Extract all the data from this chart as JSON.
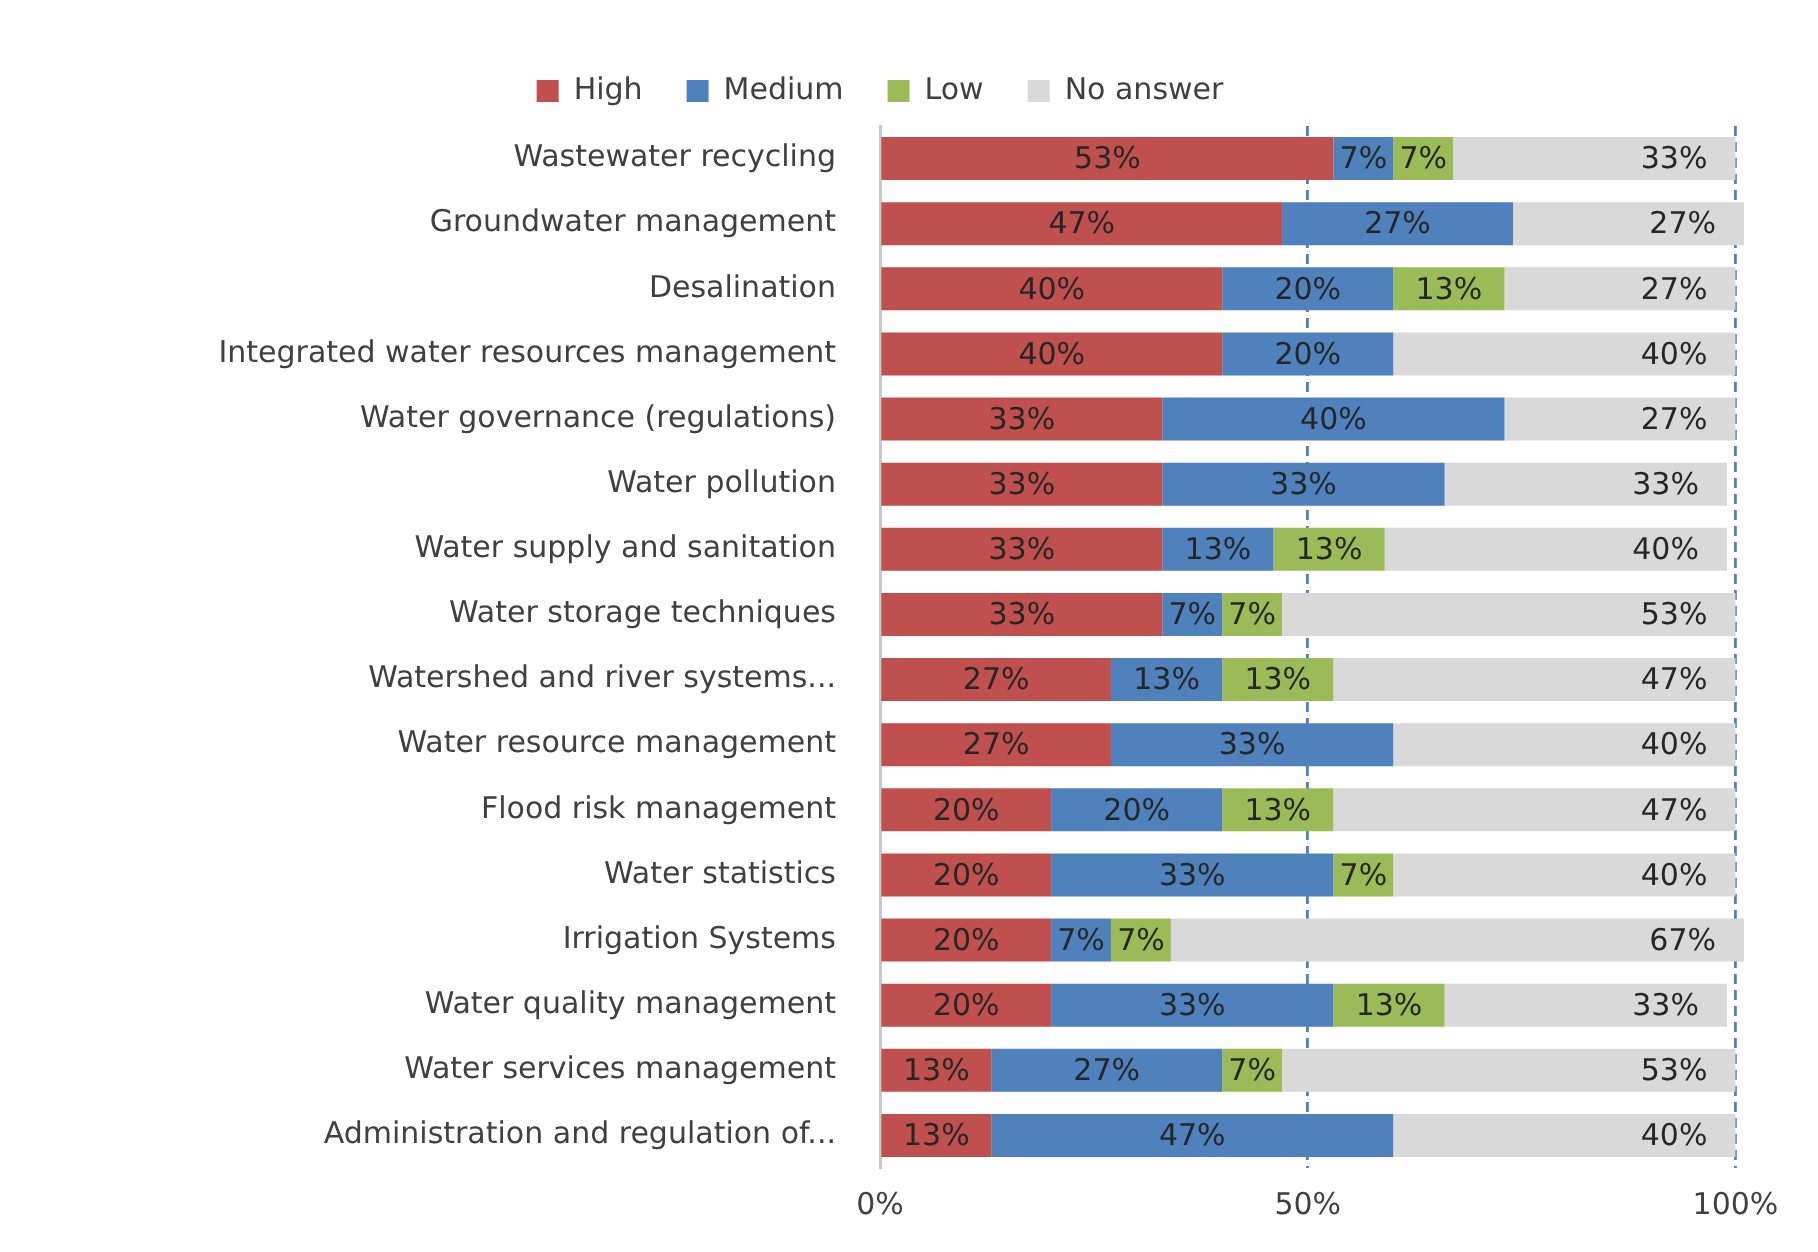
{
  "chart_data": {
    "type": "bar",
    "orientation": "horizontal",
    "stacked": true,
    "legend": "top",
    "grid": "x",
    "categories": [
      "Wastewater recycling",
      "Groundwater management",
      "Desalination",
      "Integrated water resources management",
      "Water governance (regulations)",
      "Water pollution",
      "Water supply and sanitation",
      "Water storage techniques",
      "Watershed and river systems...",
      "Water resource management",
      "Flood risk management",
      "Water statistics",
      "Irrigation Systems",
      "Water quality management",
      "Water services management",
      "Administration and regulation of..."
    ],
    "series": [
      {
        "name": "High",
        "color": "#c0504d",
        "values": [
          53,
          47,
          40,
          40,
          33,
          33,
          33,
          33,
          27,
          27,
          20,
          20,
          20,
          20,
          13,
          13
        ],
        "value_labels": [
          "53%",
          "47%",
          "40%",
          "40%",
          "33%",
          "33%",
          "33%",
          "33%",
          "27%",
          "27%",
          "20%",
          "20%",
          "20%",
          "20%",
          "13%",
          "13%"
        ]
      },
      {
        "name": "Medium",
        "color": "#4f81bd",
        "values": [
          7,
          27,
          20,
          20,
          40,
          33,
          13,
          7,
          13,
          33,
          20,
          33,
          7,
          33,
          27,
          47
        ],
        "value_labels": [
          "7%",
          "27%",
          "20%",
          "20%",
          "40%",
          "33%",
          "13%",
          "7%",
          "13%",
          "33%",
          "20%",
          "33%",
          "7%",
          "33%",
          "27%",
          "47%"
        ]
      },
      {
        "name": "Low",
        "color": "#9bbb59",
        "values": [
          7,
          null,
          13,
          null,
          null,
          null,
          13,
          7,
          13,
          null,
          13,
          7,
          7,
          13,
          7,
          null
        ],
        "value_labels": [
          "7%",
          null,
          "13%",
          null,
          null,
          null,
          "13%",
          "7%",
          "13%",
          null,
          "13%",
          "7%",
          "7%",
          "13%",
          "7%",
          null
        ]
      },
      {
        "name": "No answer",
        "color": "#d9d9d9",
        "values": [
          33,
          27,
          27,
          40,
          27,
          33,
          40,
          53,
          47,
          40,
          47,
          40,
          67,
          33,
          53,
          40
        ],
        "value_labels": [
          "33%",
          "27%",
          "27%",
          "40%",
          "27%",
          "33%",
          "40%",
          "53%",
          "47%",
          "40%",
          "47%",
          "40%",
          "67%",
          "33%",
          "53%",
          "40%"
        ]
      }
    ],
    "xlim": [
      0,
      101
    ],
    "xticks": [
      {
        "value": 0,
        "label": "0%"
      },
      {
        "value": 50,
        "label": "50%"
      },
      {
        "value": 100,
        "label": "100%"
      }
    ]
  }
}
